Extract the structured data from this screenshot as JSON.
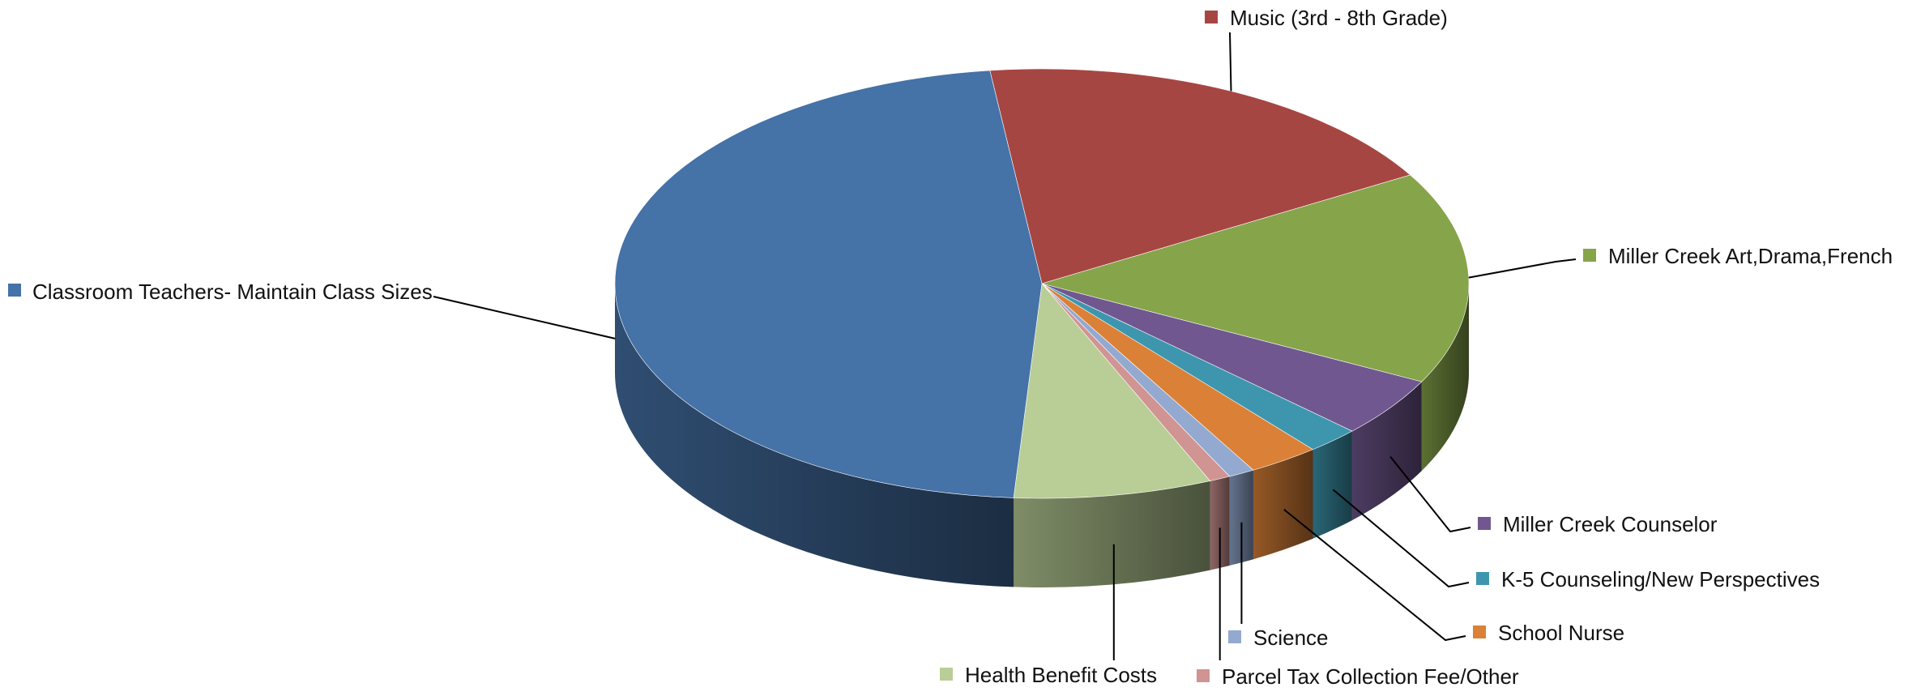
{
  "chart_data": {
    "type": "pie",
    "title": "",
    "style": "3d-exploded-perspective",
    "slices": [
      {
        "name": "Music (3rd - 8th Grade)",
        "value": 18.5,
        "color": "#A64643"
      },
      {
        "name": "Miller Creek Art,Drama,French",
        "value": 16.0,
        "color": "#86A44A"
      },
      {
        "name": "Miller Creek Counselor",
        "value": 4.5,
        "color": "#71578F"
      },
      {
        "name": "K-5 Counseling/New Perspectives",
        "value": 2.0,
        "color": "#3D96AE"
      },
      {
        "name": "School Nurse",
        "value": 2.7,
        "color": "#DA8137"
      },
      {
        "name": "Science",
        "value": 1.0,
        "color": "#93A9D0"
      },
      {
        "name": "Parcel Tax Collection Fee/Other",
        "value": 0.8,
        "color": "#D09493"
      },
      {
        "name": "Health Benefit Costs",
        "value": 7.5,
        "color": "#B9CD96"
      },
      {
        "name": "Classroom Teachers- Maintain Class Sizes",
        "value": 47.0,
        "color": "#4572A7"
      }
    ],
    "legend": "callout-labels"
  }
}
